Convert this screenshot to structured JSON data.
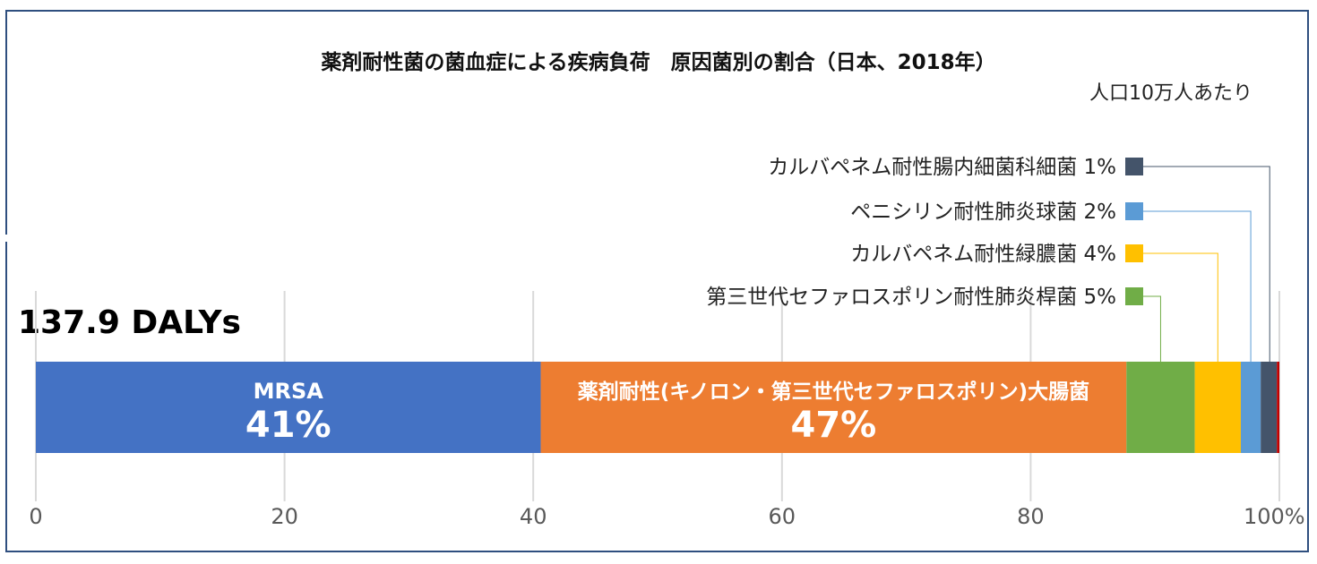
{
  "chart_data": {
    "type": "bar",
    "orientation": "horizontal-stacked-100",
    "title": "薬剤耐性菌の菌血症による疾病負荷　原因菌別の割合（日本、2018年）",
    "subtitle": "人口10万人あたり",
    "total_label": "137.9 DALYs",
    "xlim": [
      0,
      100
    ],
    "x_ticks": [
      "0",
      "20",
      "40",
      "60",
      "80",
      "100%"
    ],
    "x_tick_values": [
      0,
      20,
      40,
      60,
      80,
      100
    ],
    "grid": "vertical",
    "segments": [
      {
        "name": "MRSA",
        "value": 40.6,
        "label": "41%",
        "color": "#4472c4",
        "inside": true
      },
      {
        "name": "薬剤耐性(キノロン・第三世代セファロスポリン)大腸菌",
        "value": 47.1,
        "label": "47%",
        "color": "#ed7d31",
        "inside": true
      },
      {
        "name": "第三世代セファロスポリン耐性肺炎桿菌",
        "value": 5.5,
        "label": "5%",
        "color": "#70ad47",
        "inside": false
      },
      {
        "name": "カルバペネム耐性緑膿菌",
        "value": 3.7,
        "label": "4%",
        "color": "#ffc000",
        "inside": false
      },
      {
        "name": "ペニシリン耐性肺炎球菌",
        "value": 1.6,
        "label": "2%",
        "color": "#5b9bd5",
        "inside": false
      },
      {
        "name": "カルバペネム耐性腸内細菌科細菌",
        "value": 1.3,
        "label": "1%",
        "color": "#44546a",
        "inside": false
      },
      {
        "name": "",
        "value": 0.2,
        "label": "",
        "color": "#c00000",
        "inside": false
      }
    ]
  }
}
